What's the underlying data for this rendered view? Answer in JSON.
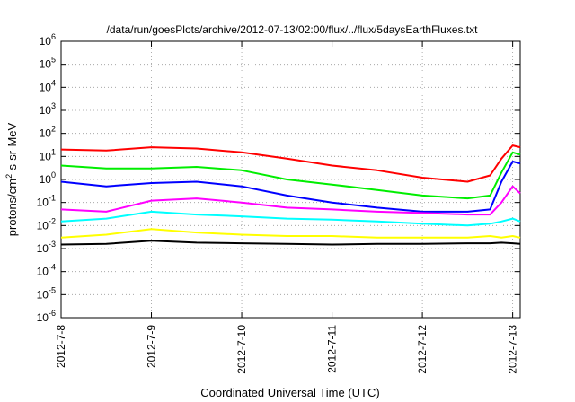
{
  "chart_data": {
    "type": "line",
    "title": "/data/run/goesPlots/archive/2012-07-13/02:00/flux/../flux/5daysEarthFluxes.txt",
    "xlabel": "Coordinated Universal Time (UTC)",
    "ylabel": {
      "prefix": "protons/cm",
      "sup": "2",
      "suffix": "-s-sr-MeV"
    },
    "x_axis": {
      "range": [
        "2012-07-08",
        "2012-07-13T02:00"
      ],
      "ticks": [
        "2012-7-8",
        "2012-7-9",
        "2012-7-10",
        "2012-7-11",
        "2012-7-12",
        "2012-7-13"
      ]
    },
    "y_axis": {
      "scale": "log",
      "range": [
        1e-06,
        1000000.0
      ],
      "tick_base": "10",
      "tick_exponents": [
        "6",
        "5",
        "4",
        "3",
        "2",
        "1",
        "0",
        "-1",
        "-2",
        "-3",
        "-4",
        "-5",
        "-6"
      ]
    },
    "grid": true,
    "legend": "none",
    "series": [
      {
        "color": "#ff0000",
        "x": [
          "2012-07-08T00:00",
          "2012-07-08T12:00",
          "2012-07-09T00:00",
          "2012-07-09T12:00",
          "2012-07-10T00:00",
          "2012-07-10T12:00",
          "2012-07-11T00:00",
          "2012-07-11T12:00",
          "2012-07-12T00:00",
          "2012-07-12T12:00",
          "2012-07-12T18:00",
          "2012-07-12T21:00",
          "2012-07-13T00:00",
          "2012-07-13T02:00"
        ],
        "y": [
          20,
          18,
          25,
          22,
          15,
          8,
          4,
          2.5,
          1.2,
          0.8,
          1.5,
          8,
          30,
          25
        ]
      },
      {
        "color": "#00ee00",
        "x": [
          "2012-07-08T00:00",
          "2012-07-08T12:00",
          "2012-07-09T00:00",
          "2012-07-09T12:00",
          "2012-07-10T00:00",
          "2012-07-10T12:00",
          "2012-07-11T00:00",
          "2012-07-11T12:00",
          "2012-07-12T00:00",
          "2012-07-12T12:00",
          "2012-07-12T18:00",
          "2012-07-12T21:00",
          "2012-07-13T00:00",
          "2012-07-13T02:00"
        ],
        "y": [
          4,
          3,
          3,
          3.5,
          2.5,
          1,
          0.6,
          0.35,
          0.2,
          0.15,
          0.2,
          2,
          15,
          12
        ]
      },
      {
        "color": "#0000ff",
        "x": [
          "2012-07-08T00:00",
          "2012-07-08T12:00",
          "2012-07-09T00:00",
          "2012-07-09T12:00",
          "2012-07-10T00:00",
          "2012-07-10T12:00",
          "2012-07-11T00:00",
          "2012-07-11T12:00",
          "2012-07-12T00:00",
          "2012-07-12T12:00",
          "2012-07-12T18:00",
          "2012-07-12T21:00",
          "2012-07-13T00:00",
          "2012-07-13T02:00"
        ],
        "y": [
          0.8,
          0.5,
          0.7,
          0.8,
          0.5,
          0.2,
          0.1,
          0.06,
          0.04,
          0.04,
          0.05,
          0.8,
          6,
          5
        ]
      },
      {
        "color": "#ff00ff",
        "x": [
          "2012-07-08T00:00",
          "2012-07-08T12:00",
          "2012-07-09T00:00",
          "2012-07-09T12:00",
          "2012-07-10T00:00",
          "2012-07-10T12:00",
          "2012-07-11T00:00",
          "2012-07-11T12:00",
          "2012-07-12T00:00",
          "2012-07-12T12:00",
          "2012-07-12T18:00",
          "2012-07-12T21:00",
          "2012-07-13T00:00",
          "2012-07-13T02:00"
        ],
        "y": [
          0.05,
          0.04,
          0.12,
          0.15,
          0.1,
          0.06,
          0.05,
          0.04,
          0.035,
          0.03,
          0.03,
          0.1,
          0.5,
          0.25
        ]
      },
      {
        "color": "#00ffff",
        "x": [
          "2012-07-08T00:00",
          "2012-07-08T12:00",
          "2012-07-09T00:00",
          "2012-07-09T12:00",
          "2012-07-10T00:00",
          "2012-07-10T12:00",
          "2012-07-11T00:00",
          "2012-07-11T12:00",
          "2012-07-12T00:00",
          "2012-07-12T12:00",
          "2012-07-12T18:00",
          "2012-07-12T21:00",
          "2012-07-13T00:00",
          "2012-07-13T02:00"
        ],
        "y": [
          0.015,
          0.02,
          0.04,
          0.03,
          0.025,
          0.02,
          0.018,
          0.015,
          0.012,
          0.01,
          0.012,
          0.015,
          0.02,
          0.015
        ]
      },
      {
        "color": "#ffff00",
        "x": [
          "2012-07-08T00:00",
          "2012-07-08T12:00",
          "2012-07-09T00:00",
          "2012-07-09T12:00",
          "2012-07-10T00:00",
          "2012-07-10T12:00",
          "2012-07-11T00:00",
          "2012-07-11T12:00",
          "2012-07-12T00:00",
          "2012-07-12T12:00",
          "2012-07-12T18:00",
          "2012-07-12T21:00",
          "2012-07-13T00:00",
          "2012-07-13T02:00"
        ],
        "y": [
          0.003,
          0.004,
          0.007,
          0.005,
          0.004,
          0.0035,
          0.0035,
          0.003,
          0.003,
          0.003,
          0.0035,
          0.003,
          0.0035,
          0.003
        ]
      },
      {
        "color": "#000000",
        "x": [
          "2012-07-08T00:00",
          "2012-07-08T12:00",
          "2012-07-09T00:00",
          "2012-07-09T12:00",
          "2012-07-10T00:00",
          "2012-07-10T12:00",
          "2012-07-11T00:00",
          "2012-07-11T12:00",
          "2012-07-12T00:00",
          "2012-07-12T12:00",
          "2012-07-12T18:00",
          "2012-07-12T21:00",
          "2012-07-13T00:00",
          "2012-07-13T02:00"
        ],
        "y": [
          0.0015,
          0.0016,
          0.0022,
          0.0018,
          0.0017,
          0.0016,
          0.0015,
          0.0016,
          0.0016,
          0.0017,
          0.0017,
          0.0018,
          0.0017,
          0.0016
        ]
      }
    ]
  }
}
